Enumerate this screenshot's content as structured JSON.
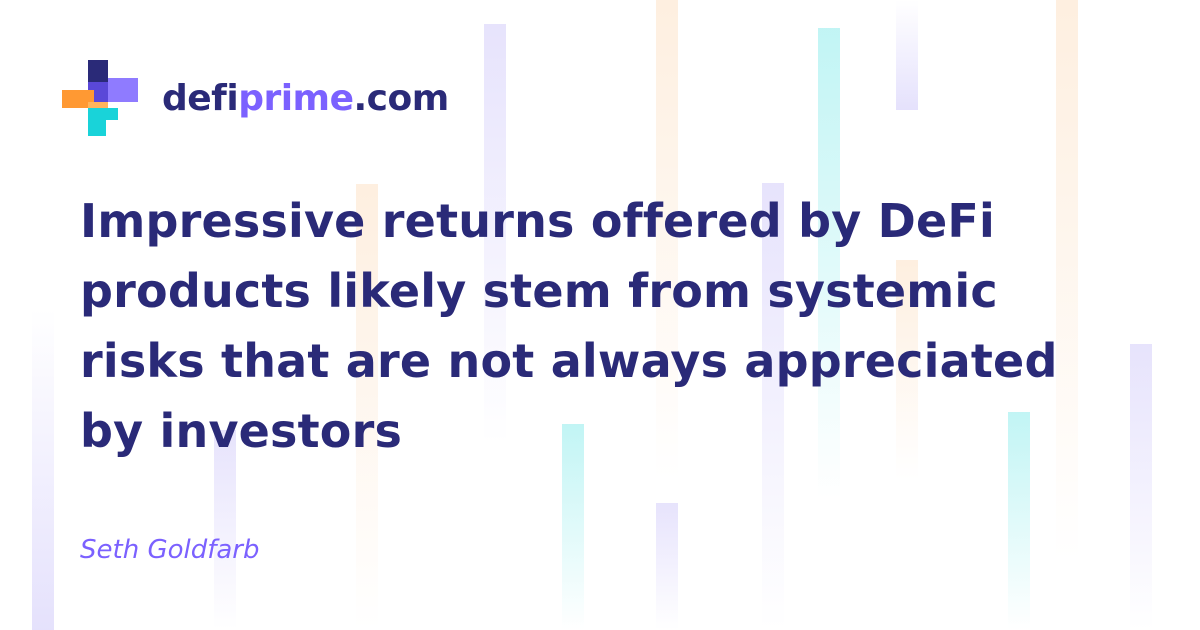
{
  "brand": {
    "name_prefix": "defi",
    "name_accent": "prime",
    "name_suffix": ".com",
    "colors": {
      "navy": "#2a2a78",
      "purple": "#7b61ff",
      "orange": "#ff9933",
      "cyan": "#19d3d9"
    },
    "icon": "defiprime-logo-icon"
  },
  "quote": {
    "lines": [
      "Impressive returns offered by DeFi",
      "products likely stem from systemic",
      "risks that are not always appreciated",
      "by investors"
    ]
  },
  "author": {
    "name": "Seth Goldfarb"
  }
}
